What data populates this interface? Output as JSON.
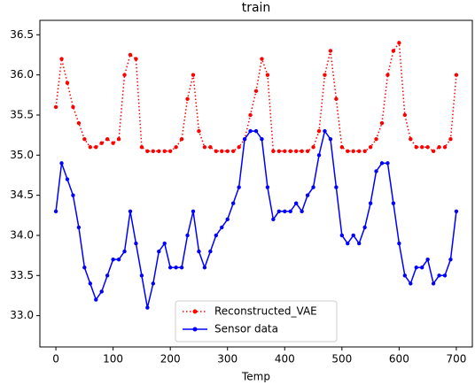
{
  "chart_data": {
    "type": "line",
    "title": "train",
    "xlabel": "Temp",
    "x": [
      0,
      10,
      20,
      30,
      40,
      50,
      60,
      70,
      80,
      90,
      100,
      110,
      120,
      130,
      140,
      150,
      160,
      170,
      180,
      190,
      200,
      210,
      220,
      230,
      240,
      250,
      260,
      270,
      280,
      290,
      300,
      310,
      320,
      330,
      340,
      350,
      360,
      370,
      380,
      390,
      400,
      410,
      420,
      430,
      440,
      450,
      460,
      470,
      480,
      490,
      500,
      510,
      520,
      530,
      540,
      550,
      560,
      570,
      580,
      590,
      600,
      610,
      620,
      630,
      640,
      650,
      660,
      670,
      680,
      690,
      700
    ],
    "series": [
      {
        "name": "Reconstructed_VAE",
        "color": "#ff0000",
        "linestyle": "dotted",
        "values": [
          35.6,
          36.2,
          35.9,
          35.6,
          35.4,
          35.2,
          35.1,
          35.1,
          35.15,
          35.2,
          35.15,
          35.2,
          36.0,
          36.25,
          36.2,
          35.1,
          35.05,
          35.05,
          35.05,
          35.05,
          35.05,
          35.1,
          35.2,
          35.7,
          36.0,
          35.3,
          35.1,
          35.1,
          35.05,
          35.05,
          35.05,
          35.05,
          35.1,
          35.2,
          35.5,
          35.8,
          36.2,
          36.0,
          35.05,
          35.05,
          35.05,
          35.05,
          35.05,
          35.05,
          35.05,
          35.1,
          35.3,
          36.0,
          36.3,
          35.7,
          35.1,
          35.05,
          35.05,
          35.05,
          35.05,
          35.1,
          35.2,
          35.4,
          36.0,
          36.3,
          36.4,
          35.5,
          35.2,
          35.1,
          35.1,
          35.1,
          35.05,
          35.1,
          35.1,
          35.2,
          36.0
        ]
      },
      {
        "name": "Sensor data",
        "color": "#0000ff",
        "linestyle": "solid",
        "values": [
          34.3,
          34.9,
          34.7,
          34.5,
          34.1,
          33.6,
          33.4,
          33.2,
          33.3,
          33.5,
          33.7,
          33.7,
          33.8,
          34.3,
          33.9,
          33.5,
          33.1,
          33.4,
          33.8,
          33.9,
          33.6,
          33.6,
          33.6,
          34.0,
          34.3,
          33.8,
          33.6,
          33.8,
          34.0,
          34.1,
          34.2,
          34.4,
          34.6,
          35.2,
          35.3,
          35.3,
          35.2,
          34.6,
          34.2,
          34.3,
          34.3,
          34.3,
          34.4,
          34.3,
          34.5,
          34.6,
          35.0,
          35.3,
          35.2,
          34.6,
          34.0,
          33.9,
          34.0,
          33.9,
          34.1,
          34.4,
          34.8,
          34.9,
          34.9,
          34.4,
          33.9,
          33.5,
          33.4,
          33.6,
          33.6,
          33.7,
          33.4,
          33.5,
          33.5,
          33.7,
          34.3
        ]
      }
    ],
    "xlim": [
      -28,
      728
    ],
    "ylim": [
      32.61,
      36.68
    ],
    "xticks": [
      0,
      100,
      200,
      300,
      400,
      500,
      600,
      700
    ],
    "yticks": [
      {
        "value": 33.0,
        "label": "33.0"
      },
      {
        "value": 33.5,
        "label": "33.5"
      },
      {
        "value": 34.0,
        "label": "34.0"
      },
      {
        "value": 34.5,
        "label": "34.5"
      },
      {
        "value": 35.0,
        "label": "35.0"
      },
      {
        "value": 35.5,
        "label": "35.5"
      },
      {
        "value": 36.0,
        "label": "36.0"
      },
      {
        "value": 36.5,
        "label": "36.5"
      }
    ],
    "legend": "lower center"
  }
}
